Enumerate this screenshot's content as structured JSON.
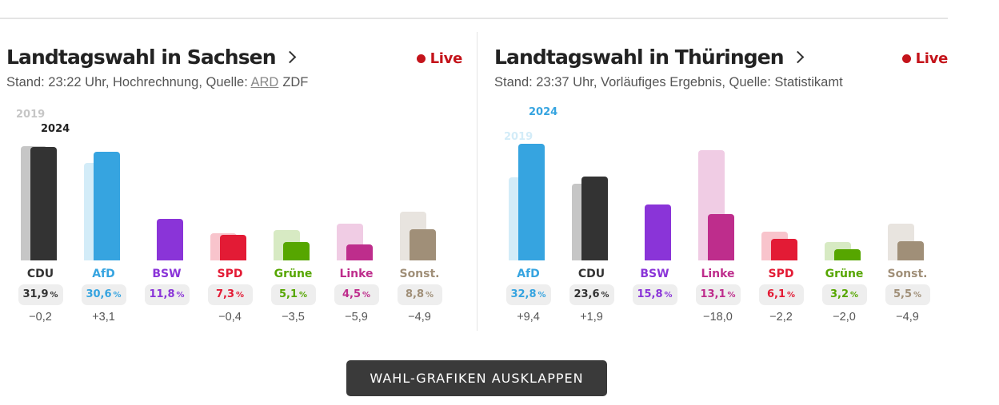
{
  "button_label": "WAHL-GRAFIKEN AUSKLAPPEN",
  "pct_symbol": "%",
  "chart_data": [
    {
      "type": "bar",
      "title": "Landtagswahl in Sachsen",
      "live_label": "Live",
      "stand": {
        "prefix": "Stand: 23:22 Uhr, Hochrechnung, Quelle:",
        "source_active": "ARD",
        "source_other": "ZDF"
      },
      "years": [
        "2019",
        "2024"
      ],
      "ylim": [
        0,
        35
      ],
      "categories": [
        "CDU",
        "AfD",
        "BSW",
        "SPD",
        "Grüne",
        "Linke",
        "Sonst."
      ],
      "series": [
        {
          "name": "2019",
          "values": [
            32.1,
            27.5,
            null,
            7.7,
            8.6,
            10.4,
            13.7
          ]
        },
        {
          "name": "2024",
          "values": [
            31.9,
            30.6,
            11.8,
            7.3,
            5.1,
            4.5,
            8.8
          ]
        }
      ],
      "value_labels": [
        "31,9",
        "30,6",
        "11,8",
        "7,3",
        "5,1",
        "4,5",
        "8,8"
      ],
      "diffs": [
        "−0,2",
        "+3,1",
        "",
        "−0,4",
        "−3,5",
        "−5,9",
        "−4,9"
      ],
      "colors": [
        "#333333",
        "#36a4e0",
        "#8a34d8",
        "#e31b35",
        "#56a600",
        "#be2d8c",
        "#a08f78"
      ],
      "colors_2019": [
        "#c6c6c6",
        "#d3ecf8",
        "#e4d4f6",
        "#f8c4cc",
        "#d7eac3",
        "#f0cce4",
        "#e8e4df"
      ]
    },
    {
      "type": "bar",
      "title": "Landtagswahl in Thüringen",
      "live_label": "Live",
      "stand": {
        "prefix": "Stand: 23:37 Uhr, Vorläufiges Ergebnis, Quelle: Statistikamt",
        "source_active": "",
        "source_other": ""
      },
      "years": [
        "2019",
        "2024"
      ],
      "ylim": [
        0,
        35
      ],
      "categories": [
        "AfD",
        "CDU",
        "BSW",
        "Linke",
        "SPD",
        "Grüne",
        "Sonst."
      ],
      "series": [
        {
          "name": "2019",
          "values": [
            23.4,
            21.7,
            null,
            31.0,
            8.2,
            5.2,
            10.4
          ]
        },
        {
          "name": "2024",
          "values": [
            32.8,
            23.6,
            15.8,
            13.1,
            6.1,
            3.2,
            5.5
          ]
        }
      ],
      "value_labels": [
        "32,8",
        "23,6",
        "15,8",
        "13,1",
        "6,1",
        "3,2",
        "5,5"
      ],
      "diffs": [
        "+9,4",
        "+1,9",
        "",
        "−18,0",
        "−2,2",
        "−2,0",
        "−4,9"
      ],
      "colors": [
        "#36a4e0",
        "#333333",
        "#8a34d8",
        "#be2d8c",
        "#e31b35",
        "#56a600",
        "#a08f78"
      ],
      "colors_2019": [
        "#d3ecf8",
        "#c6c6c6",
        "#e4d4f6",
        "#f0cce4",
        "#f8c4cc",
        "#d7eac3",
        "#e8e4df"
      ]
    }
  ]
}
